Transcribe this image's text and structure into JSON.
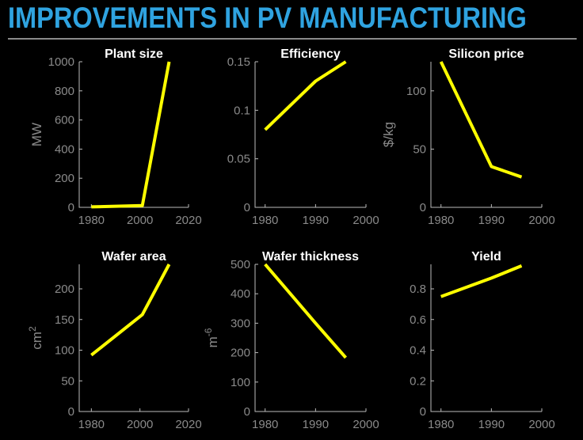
{
  "slide": {
    "title": "IMPROVEMENTS IN PV MANUFACTURING"
  },
  "chart_data": [
    {
      "type": "line",
      "title": "Plant size",
      "xlabel": "",
      "ylabel": "MW",
      "ylabel_sup": "",
      "xlim": [
        1975,
        2020
      ],
      "ylim": [
        0,
        1000
      ],
      "xticks": [
        1980,
        2000,
        2020
      ],
      "yticks": [
        0,
        200,
        400,
        600,
        800,
        1000
      ],
      "x": [
        1980,
        2001,
        2012
      ],
      "y": [
        3,
        12,
        1000
      ],
      "line_color": "#ffff00"
    },
    {
      "type": "line",
      "title": "Efficiency",
      "xlabel": "",
      "ylabel": "",
      "ylabel_sup": "",
      "xlim": [
        1978,
        2000
      ],
      "ylim": [
        0,
        0.15
      ],
      "xticks": [
        1980,
        1990,
        2000
      ],
      "yticks": [
        0,
        0.05,
        0.1,
        0.15
      ],
      "x": [
        1980,
        1990,
        1996
      ],
      "y": [
        0.08,
        0.13,
        0.15
      ],
      "line_color": "#ffff00"
    },
    {
      "type": "line",
      "title": "Silicon price",
      "xlabel": "",
      "ylabel": "$/kg",
      "ylabel_sup": "",
      "xlim": [
        1978,
        2000
      ],
      "ylim": [
        0,
        125
      ],
      "xticks": [
        1980,
        1990,
        2000
      ],
      "yticks": [
        0,
        50,
        100
      ],
      "x": [
        1980,
        1990,
        1996
      ],
      "y": [
        125,
        35,
        26
      ],
      "line_color": "#ffff00"
    },
    {
      "type": "line",
      "title": "Wafer area",
      "xlabel": "",
      "ylabel": "cm",
      "ylabel_sup": "2",
      "xlim": [
        1975,
        2020
      ],
      "ylim": [
        0,
        240
      ],
      "xticks": [
        1980,
        2000,
        2020
      ],
      "yticks": [
        0,
        50,
        100,
        150,
        200
      ],
      "x": [
        1980,
        2001,
        2012
      ],
      "y": [
        92,
        158,
        240
      ],
      "line_color": "#ffff00"
    },
    {
      "type": "line",
      "title": "Wafer thickness",
      "xlabel": "",
      "ylabel": "m",
      "ylabel_sup": "-6",
      "xlim": [
        1978,
        2000
      ],
      "ylim": [
        0,
        500
      ],
      "xticks": [
        1980,
        1990,
        2000
      ],
      "yticks": [
        0,
        100,
        200,
        300,
        400,
        500
      ],
      "x": [
        1980,
        1990,
        1996
      ],
      "y": [
        500,
        300,
        183
      ],
      "line_color": "#ffff00"
    },
    {
      "type": "line",
      "title": "Yield",
      "xlabel": "",
      "ylabel": "",
      "ylabel_sup": "",
      "xlim": [
        1978,
        2000
      ],
      "ylim": [
        0,
        0.96
      ],
      "xticks": [
        1980,
        1990,
        2000
      ],
      "yticks": [
        0,
        0.2,
        0.4,
        0.6,
        0.8
      ],
      "x": [
        1980,
        1990,
        1996
      ],
      "y": [
        0.75,
        0.87,
        0.95
      ],
      "line_color": "#ffff00"
    }
  ]
}
